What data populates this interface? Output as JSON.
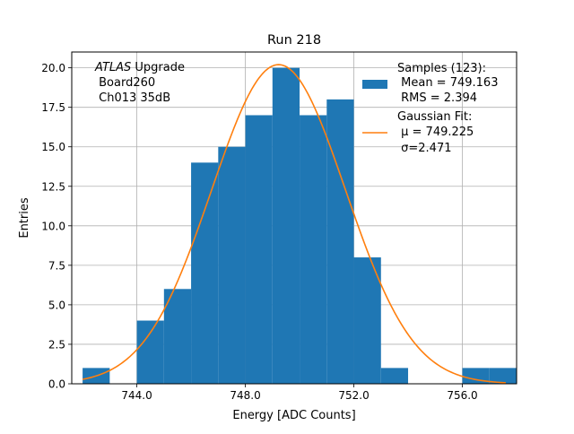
{
  "chart_data": {
    "type": "bar",
    "title": "Run 218",
    "xlabel": "Energy [ADC Counts]",
    "ylabel": "Entries",
    "xlim": [
      741.6,
      758.0
    ],
    "ylim": [
      0,
      21.0
    ],
    "grid": true,
    "xticks": [
      744,
      748,
      752,
      756
    ],
    "xtick_labels": [
      "744.0",
      "748.0",
      "752.0",
      "756.0"
    ],
    "yticks": [
      0,
      2.5,
      5,
      7.5,
      10,
      12.5,
      15,
      17.5,
      20
    ],
    "ytick_labels": [
      "0.0",
      "2.5",
      "5.0",
      "7.5",
      "10.0",
      "12.5",
      "15.0",
      "17.5",
      "20.0"
    ],
    "bin_width": 1,
    "bins": [
      {
        "x": 742,
        "count": 1
      },
      {
        "x": 743,
        "count": 0
      },
      {
        "x": 744,
        "count": 4
      },
      {
        "x": 745,
        "count": 6
      },
      {
        "x": 746,
        "count": 14
      },
      {
        "x": 747,
        "count": 15
      },
      {
        "x": 748,
        "count": 17
      },
      {
        "x": 749,
        "count": 20
      },
      {
        "x": 750,
        "count": 17
      },
      {
        "x": 751,
        "count": 18
      },
      {
        "x": 752,
        "count": 8
      },
      {
        "x": 753,
        "count": 1
      },
      {
        "x": 754,
        "count": 0
      },
      {
        "x": 755,
        "count": 0
      },
      {
        "x": 756,
        "count": 1
      },
      {
        "x": 757,
        "count": 1
      }
    ],
    "fit": {
      "mu": 749.225,
      "sigma": 2.471,
      "amplitude": 20.2,
      "x_range": [
        742.0,
        757.6
      ]
    },
    "colors": {
      "bars": "#1f77b4",
      "fit": "#ff7f0e",
      "grid": "#b0b0b0"
    },
    "annotation": {
      "line1_italic": "ATLAS",
      "line1_rest": " Upgrade",
      "line2": " Board260",
      "line3": " Ch013 35dB"
    },
    "legend": {
      "placement": "top-right",
      "samples_title": "Samples (123):",
      "samples_mean": " Mean = 749.163",
      "samples_rms": " RMS = 2.394",
      "fit_title": "Gaussian Fit:",
      "fit_mu": " μ = 749.225",
      "fit_sigma": " σ=2.471"
    }
  }
}
